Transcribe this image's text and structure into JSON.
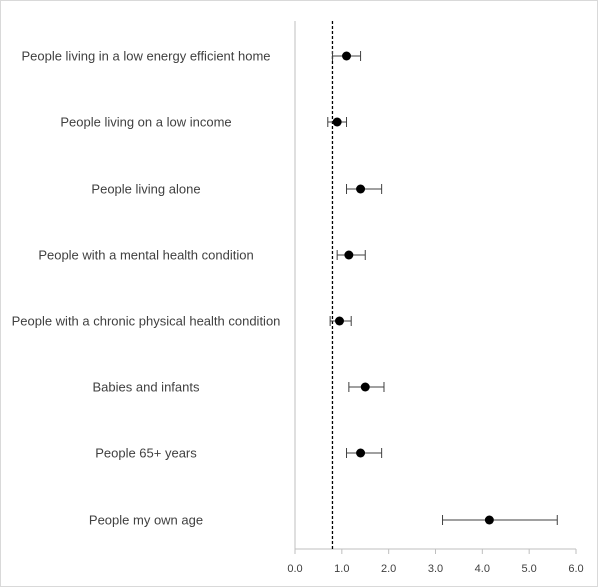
{
  "chart_data": {
    "type": "scatter",
    "subtype": "forest-plot",
    "title": "",
    "xlabel": "",
    "ylabel": "",
    "xlim": [
      0,
      6
    ],
    "x_ticks": [
      "0.0",
      "1.0",
      "2.0",
      "3.0",
      "4.0",
      "5.0",
      "6.0"
    ],
    "reference_line": 0.8,
    "grid": false,
    "categories": [
      "People living in a low energy efficient home",
      "People living on a low income",
      "People living alone",
      "People with a mental health condition",
      "People with a chronic physical health condition",
      "Babies and infants",
      "People 65+ years",
      "People my own age"
    ],
    "estimates": [
      1.1,
      0.9,
      1.4,
      1.15,
      0.95,
      1.5,
      1.4,
      4.15
    ],
    "lower": [
      0.8,
      0.7,
      1.1,
      0.9,
      0.75,
      1.15,
      1.1,
      3.15
    ],
    "upper": [
      1.4,
      1.1,
      1.85,
      1.5,
      1.2,
      1.9,
      1.85,
      5.6
    ],
    "colors": {
      "marker": "#000000",
      "error_bar": "#404040",
      "axis": "#bfbfbf",
      "reference": "#000000",
      "text": "#404040"
    }
  }
}
